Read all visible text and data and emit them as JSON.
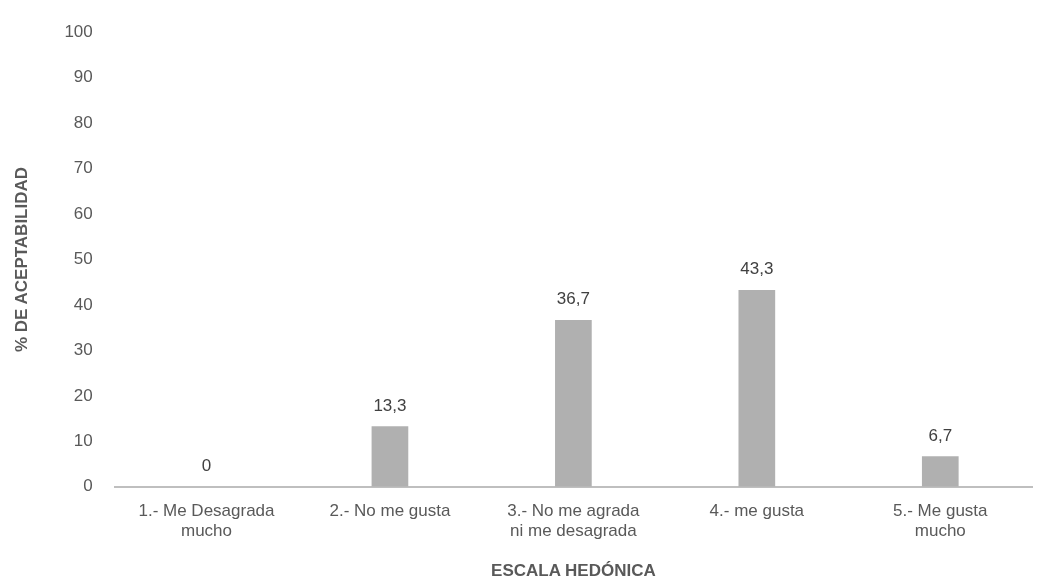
{
  "chart_data": {
    "type": "bar",
    "xlabel": "ESCALA HEDÓNICA",
    "ylabel": "% DE ACEPTABILIDAD",
    "categories": [
      "1.- Me Desagrada mucho",
      "2.- No me gusta",
      "3.- No me agrada ni me desagrada",
      "4.- me gusta",
      "5.- Me gusta mucho"
    ],
    "values": [
      0,
      13.3,
      36.7,
      43.3,
      6.7
    ],
    "value_labels": [
      "0",
      "13,3",
      "36,7",
      "43,3",
      "6,7"
    ],
    "color": "#b0b0b0",
    "ylim": [
      0,
      100
    ],
    "yticks": [
      0,
      10,
      20,
      30,
      40,
      50,
      60,
      70,
      80,
      90,
      100
    ],
    "grid": false,
    "legend": false
  }
}
